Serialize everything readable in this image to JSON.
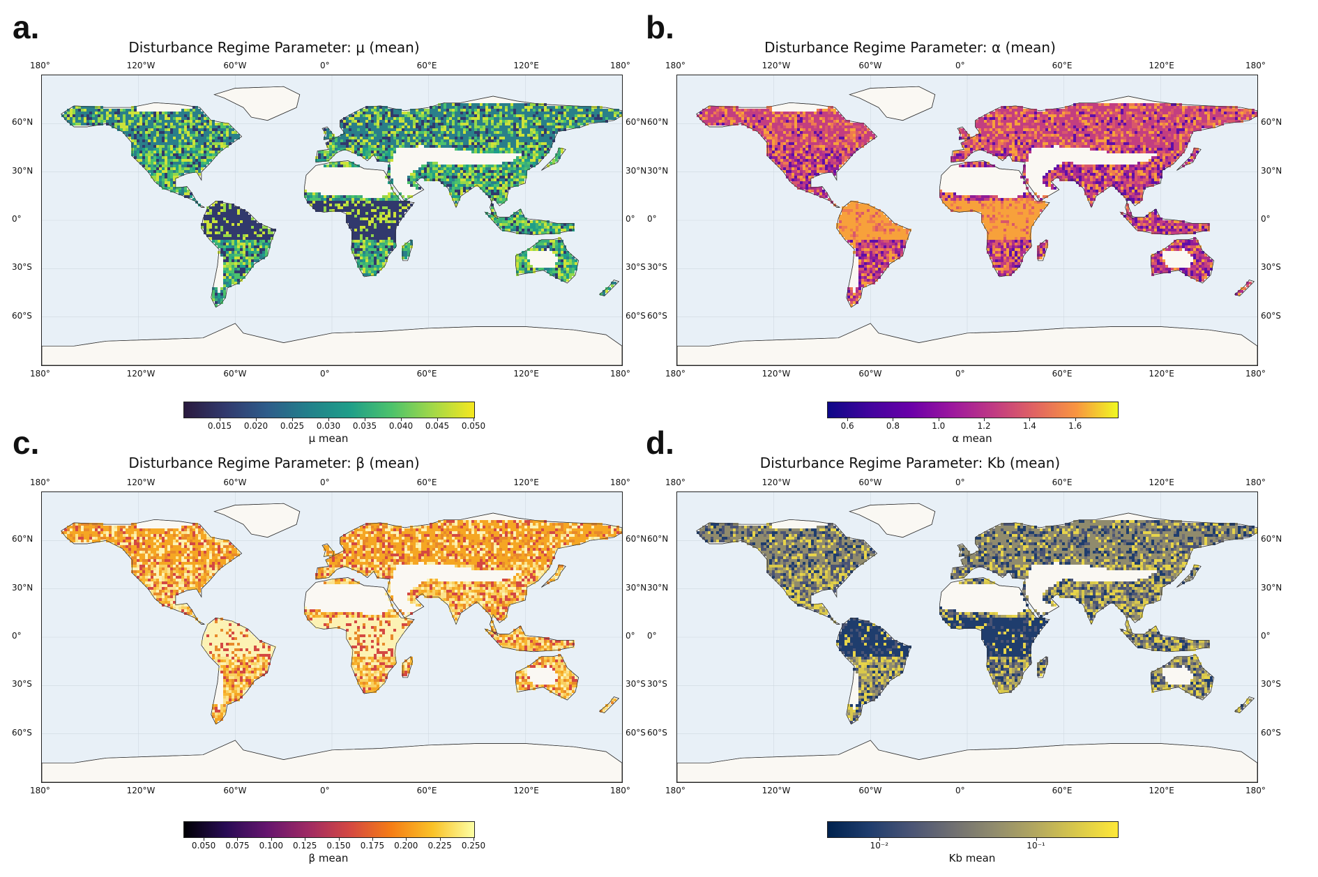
{
  "panels": [
    {
      "letter": "a.",
      "title": "Disturbance Regime Parameter: μ (mean)",
      "cbar_label": "μ mean",
      "cbar_ticks": [
        "0.015",
        "0.020",
        "0.025",
        "0.030",
        "0.035",
        "0.040",
        "0.045",
        "0.050"
      ],
      "colormap": [
        "#2a1a3e",
        "#31396d",
        "#2e5c8a",
        "#22808b",
        "#1f9e89",
        "#4cc26c",
        "#a2d848",
        "#f5e71f"
      ],
      "land_colors": [
        "#1f9e89",
        "#3aae7a",
        "#2a7f8a",
        "#4cc26c",
        "#95d84a",
        "#cde33a",
        "#31396d"
      ]
    },
    {
      "letter": "b.",
      "title": "Disturbance Regime Parameter: α (mean)",
      "cbar_label": "α mean",
      "cbar_ticks": [
        "0.6",
        "0.8",
        "1.0",
        "1.2",
        "1.4",
        "1.6"
      ],
      "colormap": [
        "#0d0887",
        "#41049d",
        "#6a00a8",
        "#9c179e",
        "#c03a83",
        "#e16462",
        "#f89540",
        "#f0f921"
      ],
      "land_colors": [
        "#8f1d97",
        "#b02f8c",
        "#c33e80",
        "#5f0ea8",
        "#d8576b",
        "#ef7b4f",
        "#f7a13b"
      ]
    },
    {
      "letter": "c.",
      "title": "Disturbance Regime Parameter: β (mean)",
      "cbar_label": "β mean",
      "cbar_ticks": [
        "0.050",
        "0.075",
        "0.100",
        "0.125",
        "0.150",
        "0.175",
        "0.200",
        "0.225",
        "0.250"
      ],
      "colormap": [
        "#000004",
        "#280b54",
        "#65156e",
        "#9f2a63",
        "#d44842",
        "#f57d15",
        "#fac228",
        "#fcffa4"
      ],
      "land_colors": [
        "#f7b733",
        "#f9d060",
        "#f5a623",
        "#fbe38e",
        "#e8892a",
        "#d44842",
        "#fcf2b4"
      ]
    },
    {
      "letter": "d.",
      "title": "Disturbance Regime Parameter: Kb (mean)",
      "cbar_label": "Kb mean",
      "cbar_ticks": [
        "10⁻²",
        "10⁻¹"
      ],
      "colormap": [
        "#00224e",
        "#1f3d6d",
        "#4a5475",
        "#6f6f72",
        "#908b6d",
        "#b2a760",
        "#d9c84b",
        "#fee838"
      ],
      "land_colors": [
        "#d9c84b",
        "#b2a760",
        "#908b6d",
        "#6f6f72",
        "#e7d44a",
        "#4a5475",
        "#1f3d6d"
      ]
    }
  ],
  "lon_labels": [
    "180°",
    "120°W",
    "60°W",
    "0°",
    "60°E",
    "120°E",
    "180°"
  ],
  "lat_labels": [
    "60°N",
    "30°N",
    "0°",
    "30°S",
    "60°S"
  ],
  "ocean_color": "#e8f0f7",
  "nodata_land_color": "#faf8f3"
}
